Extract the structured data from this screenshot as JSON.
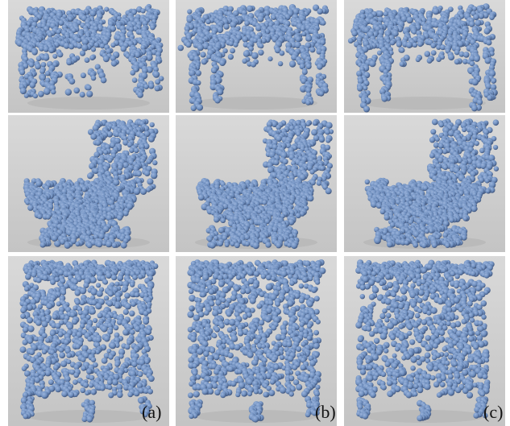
{
  "figure": {
    "panel_labels": [
      "(a)",
      "(b)",
      "(c)"
    ],
    "rows": [
      {
        "object": "table",
        "shape-icons": [
          "table-point-cloud-icon",
          "table-point-cloud-icon",
          "table-point-cloud-icon"
        ]
      },
      {
        "object": "toilet",
        "shape-icons": [
          "toilet-point-cloud-icon",
          "toilet-point-cloud-icon",
          "toilet-point-cloud-icon"
        ]
      },
      {
        "object": "cabinet",
        "shape-icons": [
          "cabinet-point-cloud-icon",
          "cabinet-point-cloud-icon",
          "cabinet-point-cloud-icon"
        ]
      }
    ],
    "colors": {
      "point": "#6f8fbf",
      "point_highlight": "#9bb4dc",
      "point_shadow": "#41577f",
      "background_top": "#d9d9d9",
      "background_bottom": "#c4c4c4"
    }
  }
}
